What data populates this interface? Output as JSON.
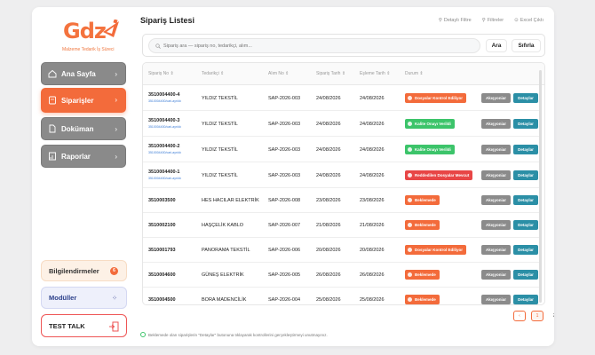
{
  "brand": {
    "logo_text": "Gdz",
    "subtitle": "Malzeme Tedarik İş Süreci",
    "accent": "#f36b3b"
  },
  "sidebar": {
    "items": [
      {
        "label": "Ana Sayfa",
        "icon": "home-icon",
        "active": false
      },
      {
        "label": "Siparişler",
        "icon": "orders-icon",
        "active": true
      },
      {
        "label": "Doküman",
        "icon": "document-icon",
        "active": false
      },
      {
        "label": "Raporlar",
        "icon": "report-icon",
        "active": false
      }
    ],
    "notifications": {
      "label": "Bilgilendirmeler",
      "count": "6"
    },
    "modules": {
      "label": "Modüller"
    },
    "test": {
      "label": "TEST TALK"
    }
  },
  "header": {
    "title": "Sipariş Listesi",
    "links": [
      "Detaylı Filtre",
      "Filtreler",
      "Excel Çıktı"
    ]
  },
  "search": {
    "placeholder": "Sipariş ara — sipariş no, tedarikçi, alım...",
    "search_label": "Ara",
    "reset_label": "Sıfırla"
  },
  "table": {
    "columns": [
      "Sipariş No",
      "Tedarikçi",
      "Alım No",
      "Sipariş Tarih",
      "Eşleme Tarih",
      "Durum"
    ],
    "rows": [
      {
        "code": "3510004400-4",
        "sub": "3510004400/cari-ayrıldı",
        "supplier": "YILDIZ TEKSTİL",
        "alim": "SAP-2026-003",
        "d1": "24/08/2026",
        "d2": "24/08/2026",
        "status": "Dosyalar Kontrol Ediliyor",
        "status_type": "orange"
      },
      {
        "code": "3510004400-3",
        "sub": "3510004400/cari-ayrıldı",
        "supplier": "YILDIZ TEKSTİL",
        "alim": "SAP-2026-003",
        "d1": "24/08/2026",
        "d2": "24/08/2026",
        "status": "Kalite Onayı Verildi",
        "status_type": "green"
      },
      {
        "code": "3510004400-2",
        "sub": "3510004400/cari-ayrıldı",
        "supplier": "YILDIZ TEKSTİL",
        "alim": "SAP-2026-003",
        "d1": "24/08/2026",
        "d2": "24/08/2026",
        "status": "Kalite Onayı Verildi",
        "status_type": "green"
      },
      {
        "code": "3510004400-1",
        "sub": "3510004400/cari-ayrıldı",
        "supplier": "YILDIZ TEKSTİL",
        "alim": "SAP-2026-003",
        "d1": "24/08/2026",
        "d2": "24/08/2026",
        "status": "Reddedilen Dosyalar Mevcut",
        "status_type": "red"
      },
      {
        "code": "3510003500",
        "sub": "",
        "supplier": "HES HACILAR ELEKTRİK",
        "alim": "SAP-2026-008",
        "d1": "23/08/2026",
        "d2": "23/08/2026",
        "status": "Beklemede",
        "status_type": "orange"
      },
      {
        "code": "3510002100",
        "sub": "",
        "supplier": "HAŞÇELİK KABLO",
        "alim": "SAP-2026-007",
        "d1": "21/08/2026",
        "d2": "21/08/2026",
        "status": "Beklemede",
        "status_type": "orange"
      },
      {
        "code": "3510001793",
        "sub": "",
        "supplier": "PANORAMA TEKSTİL",
        "alim": "SAP-2026-006",
        "d1": "20/08/2026",
        "d2": "20/08/2026",
        "status": "Dosyalar Kontrol Ediliyor",
        "status_type": "orange"
      },
      {
        "code": "3510004600",
        "sub": "",
        "supplier": "GÜNEŞ ELEKTRİK",
        "alim": "SAP-2026-005",
        "d1": "26/08/2026",
        "d2": "26/08/2026",
        "status": "Beklemede",
        "status_type": "orange"
      },
      {
        "code": "3510004500",
        "sub": "",
        "supplier": "BORA MADENCİLİK",
        "alim": "SAP-2026-004",
        "d1": "25/08/2026",
        "d2": "25/08/2026",
        "status": "Beklemede",
        "status_type": "orange"
      }
    ],
    "action_primary": "Akışyoniar",
    "action_secondary": "Detaylar"
  },
  "pagination": {
    "prev": "‹",
    "pages": [
      "1",
      "2"
    ],
    "next": "›"
  },
  "footer": {
    "note": "Beklemede olan siparişlerin \"Detaylar\" butonuna tıklayarak kontrollerini gerçekleştirmeyi unutmayınız."
  }
}
